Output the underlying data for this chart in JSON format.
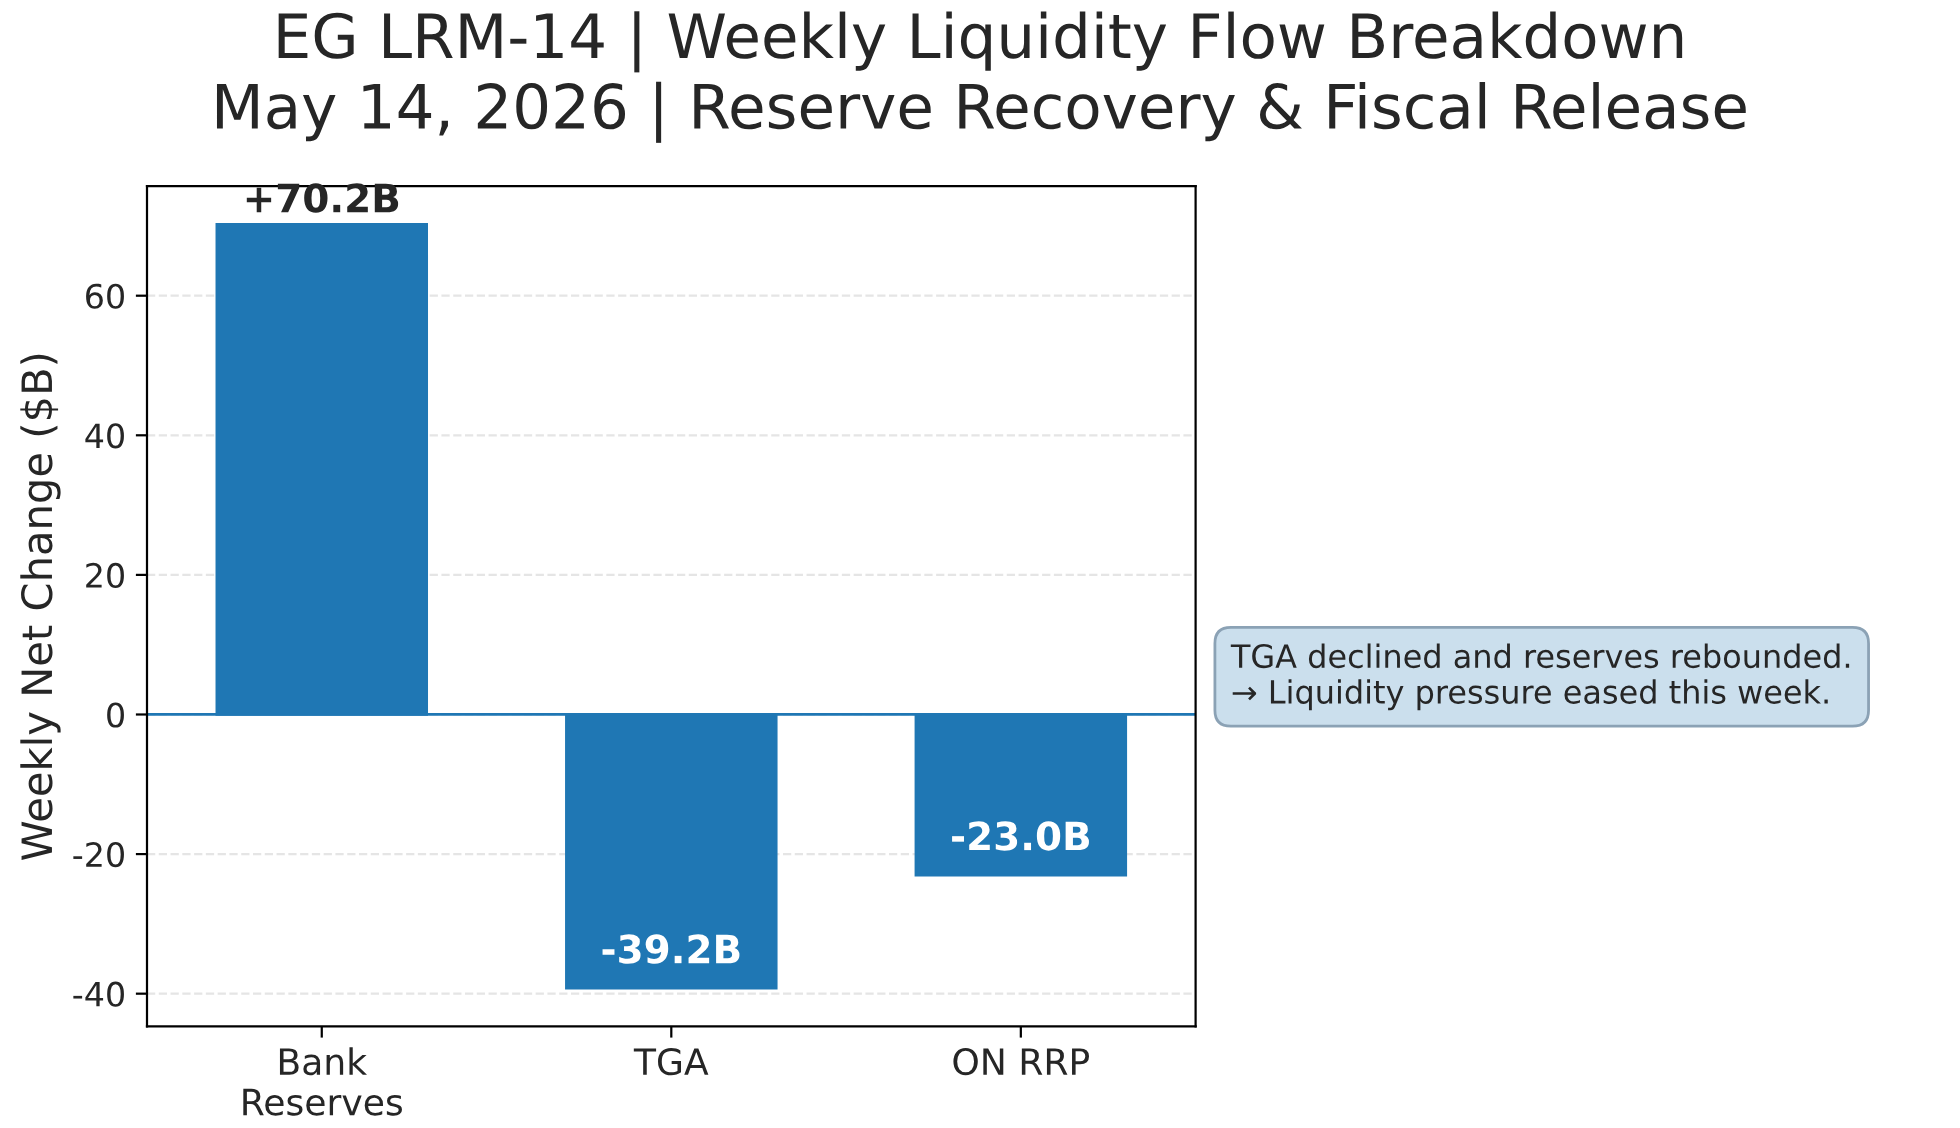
{
  "chart_data": {
    "type": "bar",
    "title": "EG LRM-14 | Weekly Liquidity Flow Breakdown\nMay 14, 2026 | Reserve Recovery & Fiscal Release",
    "ylabel": "Weekly Net Change ($B)",
    "categories": [
      "Bank\nReserves",
      "TGA",
      "ON RRP"
    ],
    "values": [
      70.2,
      -39.2,
      -23.0
    ],
    "value_labels": [
      "+70.2B",
      "-39.2B",
      "-23.0B"
    ],
    "color": "#1f77b4",
    "ylim": [
      -44.7,
      75.7
    ],
    "yticks": [
      -40,
      -20,
      0,
      20,
      40,
      60
    ],
    "grid": "y",
    "ref_lines": [
      {
        "axis": "y",
        "value": 0,
        "color": "#1f77b4",
        "line_style": "solid"
      }
    ],
    "annotations": [
      "TGA declined and reserves rebounded.\n→ Liquidity pressure eased this week."
    ]
  }
}
